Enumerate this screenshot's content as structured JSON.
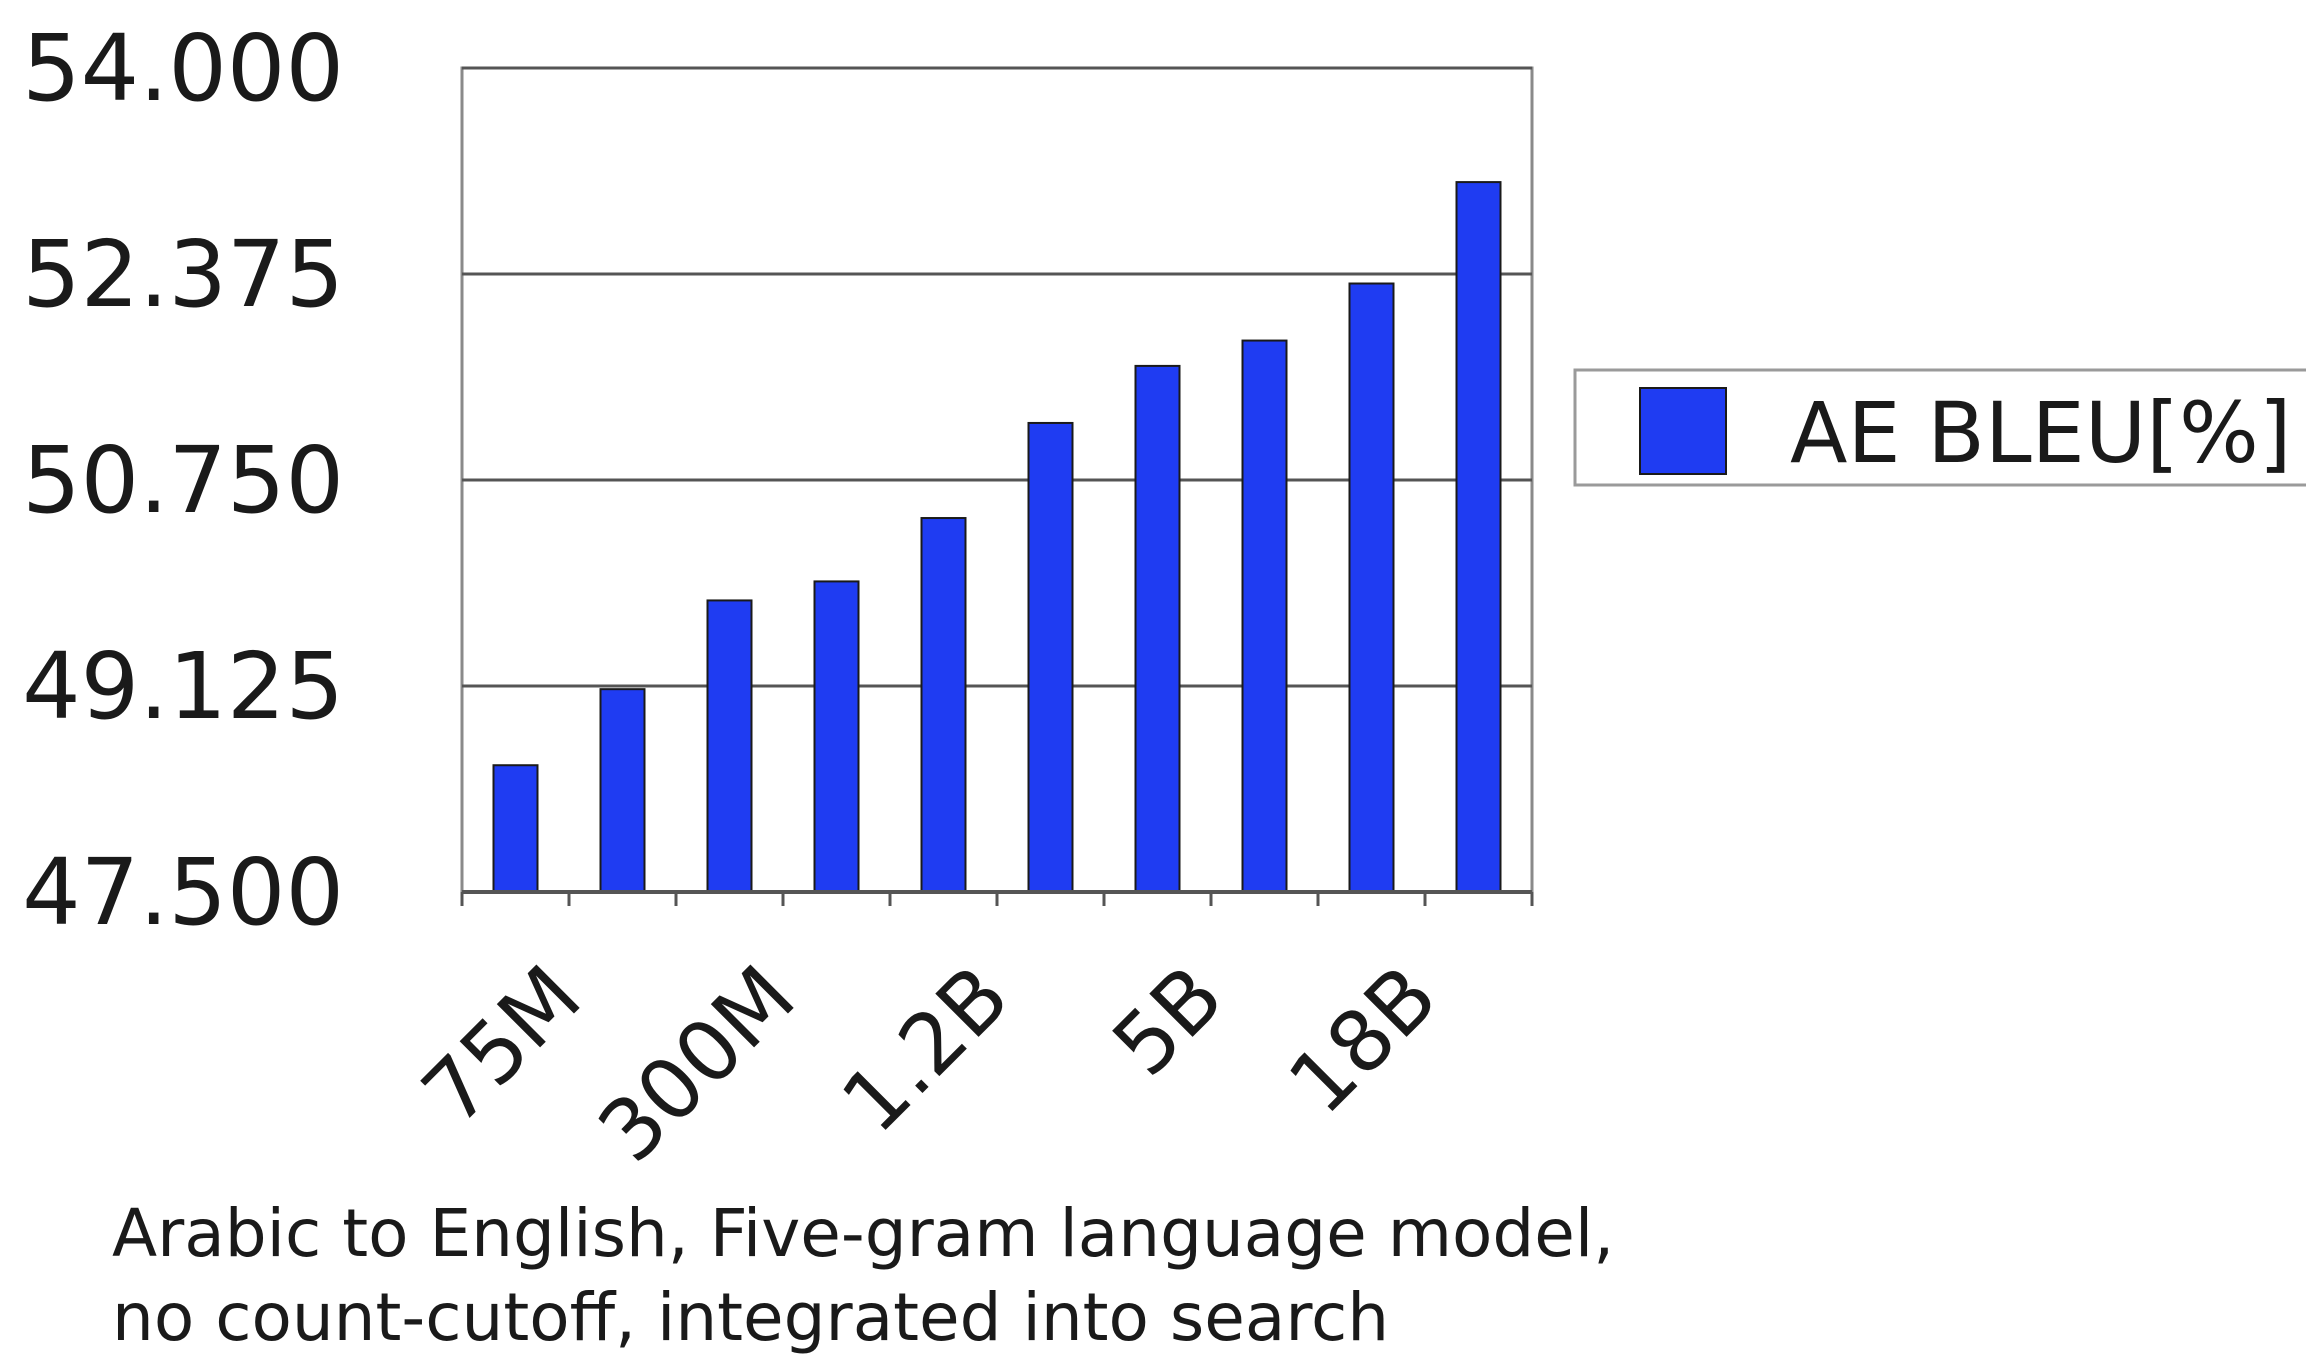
{
  "chart_data": {
    "type": "bar",
    "title": "",
    "xlabel": "",
    "ylabel": "",
    "ylim": [
      47.5,
      54.0
    ],
    "yticks": [
      "47.500",
      "49.125",
      "50.750",
      "52.375",
      "54.000"
    ],
    "categories": [
      "75M",
      "",
      "300M",
      "",
      "1.2B",
      "",
      "5B",
      "",
      "18B",
      ""
    ],
    "series": [
      {
        "name": "AE BLEU[%]",
        "color": "#1f3cf2",
        "values": [
          48.5,
          49.1,
          49.8,
          49.95,
          50.45,
          51.2,
          51.65,
          51.85,
          52.3,
          53.1
        ]
      }
    ],
    "grid": true,
    "legend": "right",
    "caption_lines": [
      "Arabic to English, Five-gram language model,",
      "no count-cutoff, integrated into search"
    ]
  }
}
